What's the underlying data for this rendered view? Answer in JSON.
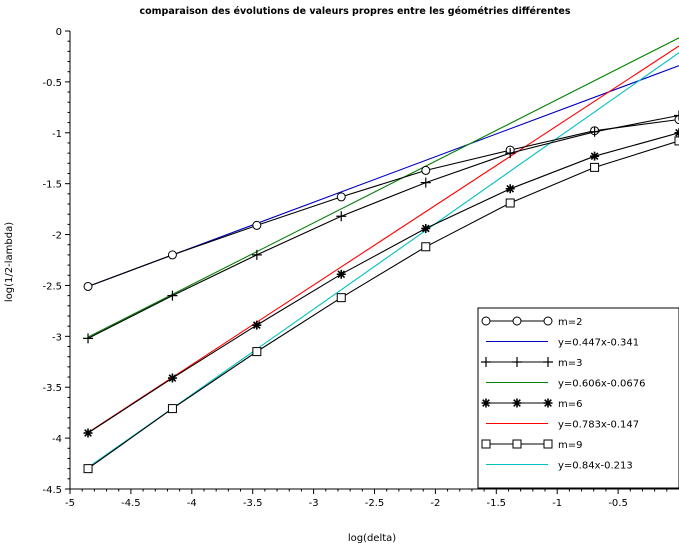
{
  "chart_data": {
    "type": "line",
    "title": "comparaison des évolutions de valeurs propres entre les géométries différentes",
    "xlabel": "log(delta)",
    "ylabel": "log(1/2-lambda)",
    "xlim": [
      -5,
      0
    ],
    "ylim": [
      -4.5,
      0
    ],
    "xticks": [
      -5,
      -4.5,
      -4,
      -3.5,
      -3,
      -2.5,
      -2,
      -1.5,
      -1,
      -0.5
    ],
    "xtick_labels": [
      "-5",
      "-4.5",
      "-4",
      "-3.5",
      "-3",
      "-2.5",
      "-2",
      "-1.5",
      "-1",
      "-0.5"
    ],
    "yticks": [
      0,
      -0.5,
      -1,
      -1.5,
      -2,
      -2.5,
      -3,
      -3.5,
      -4,
      -4.5
    ],
    "ytick_labels": [
      "0",
      "-0.5",
      "-1",
      "-1.5",
      "-2",
      "-2.5",
      "-3",
      "-3.5",
      "-4",
      "-4.5"
    ],
    "legend_position": "bottom-right",
    "series": [
      {
        "name": "m=2",
        "kind": "data",
        "marker": "circle",
        "color": "#000000",
        "x": [
          -4.852,
          -4.159,
          -3.466,
          -2.773,
          -2.079,
          -1.386,
          -0.693,
          0
        ],
        "y": [
          -2.51,
          -2.2,
          -1.91,
          -1.63,
          -1.37,
          -1.17,
          -0.98,
          -0.87
        ]
      },
      {
        "name": "y=0.447x-0.341",
        "kind": "fit",
        "color": "#0000bf",
        "x": [
          -4.852,
          0
        ],
        "y": [
          -2.51,
          -0.341
        ]
      },
      {
        "name": "m=3",
        "kind": "data",
        "marker": "plus",
        "color": "#000000",
        "x": [
          -4.852,
          -4.159,
          -3.466,
          -2.773,
          -2.079,
          -1.386,
          -0.693,
          0
        ],
        "y": [
          -3.02,
          -2.6,
          -2.2,
          -1.82,
          -1.49,
          -1.2,
          -0.99,
          -0.83
        ]
      },
      {
        "name": "y=0.606x-0.0676",
        "kind": "fit",
        "color": "#008000",
        "x": [
          -4.852,
          0
        ],
        "y": [
          -3.008,
          -0.0676
        ]
      },
      {
        "name": "m=6",
        "kind": "data",
        "marker": "star",
        "color": "#000000",
        "x": [
          -4.852,
          -4.159,
          -3.466,
          -2.773,
          -2.079,
          -1.386,
          -0.693,
          0
        ],
        "y": [
          -3.95,
          -3.41,
          -2.89,
          -2.39,
          -1.94,
          -1.55,
          -1.23,
          -1.0
        ]
      },
      {
        "name": "y=0.783x-0.147",
        "kind": "fit",
        "color": "#ff0000",
        "x": [
          -4.852,
          0
        ],
        "y": [
          -3.946,
          -0.147
        ]
      },
      {
        "name": "m=9",
        "kind": "data",
        "marker": "square",
        "color": "#000000",
        "x": [
          -4.852,
          -4.159,
          -3.466,
          -2.773,
          -2.079,
          -1.386,
          -0.693,
          0
        ],
        "y": [
          -4.3,
          -3.71,
          -3.15,
          -2.62,
          -2.12,
          -1.69,
          -1.34,
          -1.08
        ]
      },
      {
        "name": "y=0.84x-0.213",
        "kind": "fit",
        "color": "#00bfbf",
        "x": [
          -4.852,
          0
        ],
        "y": [
          -4.289,
          -0.213
        ]
      }
    ]
  }
}
